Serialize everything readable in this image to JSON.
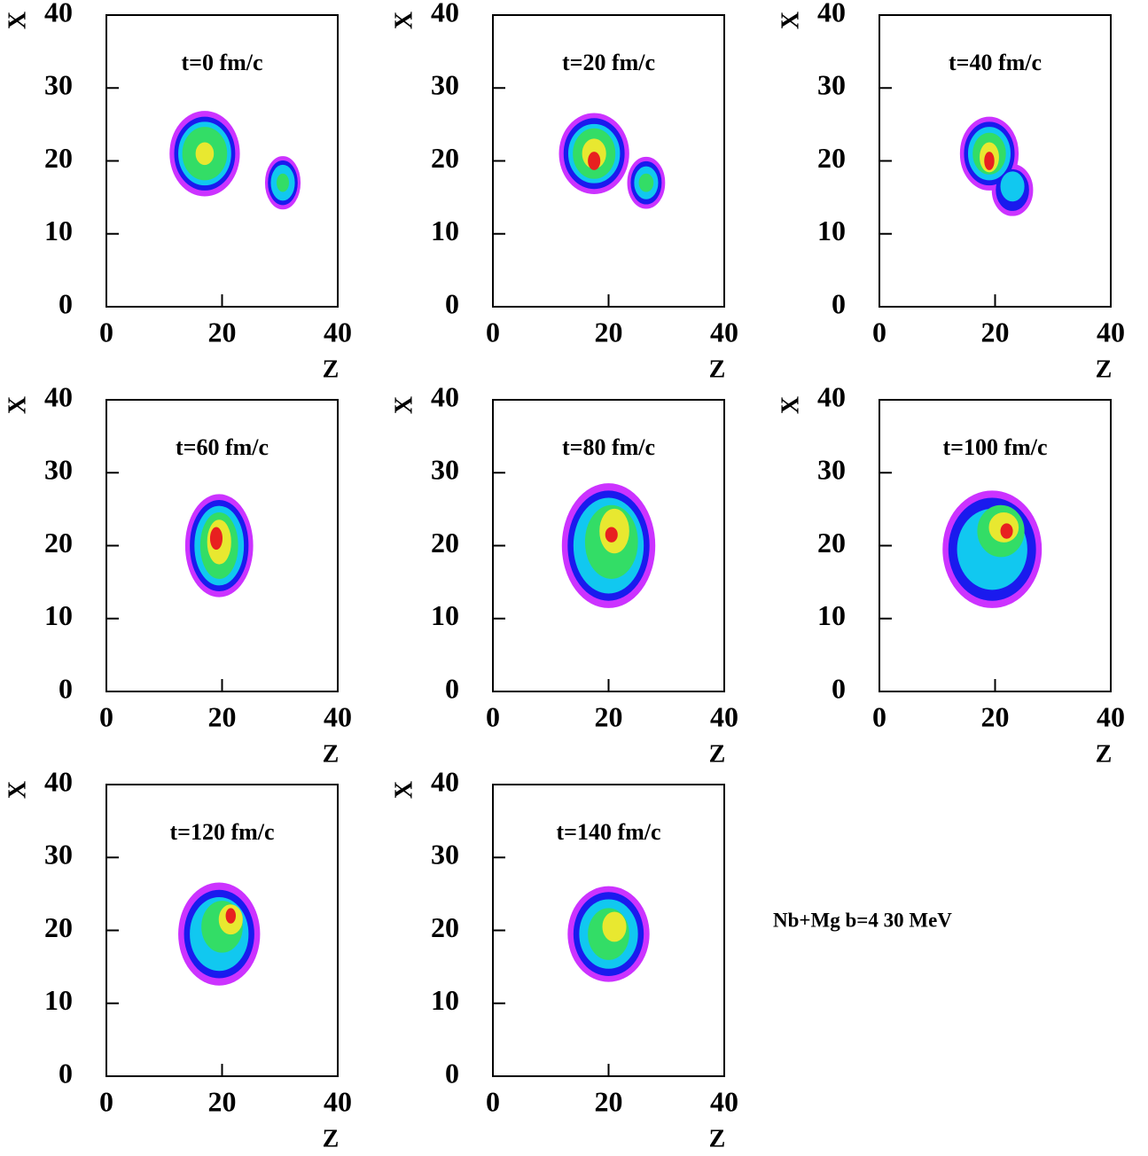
{
  "chart_data": [
    {
      "type": "contour",
      "title": "t=0 fm/c",
      "xlabel": "Z",
      "ylabel": "X",
      "xlim": [
        0,
        40
      ],
      "ylim": [
        0,
        40
      ],
      "xticks": [
        0,
        20,
        40
      ],
      "yticks": [
        0,
        10,
        20,
        30,
        40
      ],
      "contours": [
        {
          "color": "#cc33ff",
          "z": 17,
          "x": 21,
          "rz": 6,
          "rx": 5.8
        },
        {
          "color": "#1a1aee",
          "z": 17,
          "x": 21,
          "rz": 5.2,
          "rx": 5
        },
        {
          "color": "#11c8f0",
          "z": 17,
          "x": 21,
          "rz": 4.5,
          "rx": 4.3
        },
        {
          "color": "#33dd66",
          "z": 17,
          "x": 21,
          "rz": 3.8,
          "rx": 3.6
        },
        {
          "color": "#e8e830",
          "z": 17,
          "x": 21,
          "rz": 1.5,
          "rx": 1.5
        },
        {
          "color": "#cc33ff",
          "z": 30.5,
          "x": 17,
          "rz": 3,
          "rx": 3.6
        },
        {
          "color": "#1a1aee",
          "z": 30.5,
          "x": 17,
          "rz": 2.5,
          "rx": 3
        },
        {
          "color": "#11c8f0",
          "z": 30.5,
          "x": 17,
          "rz": 2,
          "rx": 2.4
        },
        {
          "color": "#33dd66",
          "z": 30.5,
          "x": 17,
          "rz": 1,
          "rx": 1.2
        }
      ]
    },
    {
      "type": "contour",
      "title": "t=20 fm/c",
      "xlabel": "Z",
      "ylabel": "X",
      "xlim": [
        0,
        40
      ],
      "ylim": [
        0,
        40
      ],
      "xticks": [
        0,
        20,
        40
      ],
      "yticks": [
        0,
        10,
        20,
        30,
        40
      ],
      "contours": [
        {
          "color": "#cc33ff",
          "z": 17.5,
          "x": 21,
          "rz": 6,
          "rx": 5.5
        },
        {
          "color": "#1a1aee",
          "z": 17.5,
          "x": 21,
          "rz": 5.2,
          "rx": 4.8
        },
        {
          "color": "#11c8f0",
          "z": 17.5,
          "x": 21,
          "rz": 4.4,
          "rx": 4
        },
        {
          "color": "#33dd66",
          "z": 17.5,
          "x": 21,
          "rz": 3.6,
          "rx": 3.4
        },
        {
          "color": "#e8e830",
          "z": 17.5,
          "x": 21,
          "rz": 2,
          "rx": 2
        },
        {
          "color": "#e82020",
          "z": 17.5,
          "x": 20,
          "rz": 1,
          "rx": 1.2
        },
        {
          "color": "#cc33ff",
          "z": 26.5,
          "x": 17,
          "rz": 3.2,
          "rx": 3.5
        },
        {
          "color": "#1a1aee",
          "z": 26.5,
          "x": 17,
          "rz": 2.6,
          "rx": 2.9
        },
        {
          "color": "#11c8f0",
          "z": 26.5,
          "x": 17,
          "rz": 2,
          "rx": 2.2
        },
        {
          "color": "#33dd66",
          "z": 26.5,
          "x": 17,
          "rz": 1.2,
          "rx": 1.2
        }
      ]
    },
    {
      "type": "contour",
      "title": "t=40 fm/c",
      "xlabel": "Z",
      "ylabel": "X",
      "xlim": [
        0,
        40
      ],
      "ylim": [
        0,
        40
      ],
      "xticks": [
        0,
        20,
        40
      ],
      "yticks": [
        0,
        10,
        20,
        30,
        40
      ],
      "contours": [
        {
          "color": "#cc33ff",
          "z": 19,
          "x": 21,
          "rz": 5,
          "rx": 5
        },
        {
          "color": "#cc33ff",
          "z": 23,
          "x": 16,
          "rz": 3.5,
          "rx": 3.5
        },
        {
          "color": "#1a1aee",
          "z": 19,
          "x": 21,
          "rz": 4.3,
          "rx": 4.3
        },
        {
          "color": "#1a1aee",
          "z": 23,
          "x": 16,
          "rz": 2.8,
          "rx": 2.8
        },
        {
          "color": "#11c8f0",
          "z": 19,
          "x": 21,
          "rz": 3.6,
          "rx": 3.6
        },
        {
          "color": "#11c8f0",
          "z": 23,
          "x": 16.5,
          "rz": 2,
          "rx": 2
        },
        {
          "color": "#33dd66",
          "z": 19,
          "x": 21,
          "rz": 2.8,
          "rx": 2.8
        },
        {
          "color": "#e8e830",
          "z": 19,
          "x": 20.5,
          "rz": 1.6,
          "rx": 2
        },
        {
          "color": "#e82020",
          "z": 19,
          "x": 20,
          "rz": 0.8,
          "rx": 1.2
        }
      ]
    },
    {
      "type": "contour",
      "title": "t=60 fm/c",
      "xlabel": "Z",
      "ylabel": "X",
      "xlim": [
        0,
        40
      ],
      "ylim": [
        0,
        40
      ],
      "xticks": [
        0,
        20,
        40
      ],
      "yticks": [
        0,
        10,
        20,
        30,
        40
      ],
      "contours": [
        {
          "color": "#cc33ff",
          "z": 19.5,
          "x": 20,
          "rz": 5.8,
          "rx": 7
        },
        {
          "color": "#1a1aee",
          "z": 19.5,
          "x": 20,
          "rz": 5,
          "rx": 6.2
        },
        {
          "color": "#11c8f0",
          "z": 19.5,
          "x": 20,
          "rz": 4.2,
          "rx": 5.4
        },
        {
          "color": "#33dd66",
          "z": 19.5,
          "x": 20,
          "rz": 3.2,
          "rx": 4.5
        },
        {
          "color": "#e8e830",
          "z": 19.5,
          "x": 20.5,
          "rz": 2,
          "rx": 3
        },
        {
          "color": "#e82020",
          "z": 19,
          "x": 21,
          "rz": 1,
          "rx": 1.5
        }
      ]
    },
    {
      "type": "contour",
      "title": "t=80 fm/c",
      "xlabel": "Z",
      "ylabel": "X",
      "xlim": [
        0,
        40
      ],
      "ylim": [
        0,
        40
      ],
      "xticks": [
        0,
        20,
        40
      ],
      "yticks": [
        0,
        10,
        20,
        30,
        40
      ],
      "contours": [
        {
          "color": "#cc33ff",
          "z": 20,
          "x": 20,
          "rz": 8,
          "rx": 8.5
        },
        {
          "color": "#1a1aee",
          "z": 20,
          "x": 20,
          "rz": 7,
          "rx": 7.5
        },
        {
          "color": "#11c8f0",
          "z": 20,
          "x": 20,
          "rz": 6,
          "rx": 6.5
        },
        {
          "color": "#33dd66",
          "z": 20.5,
          "x": 20.5,
          "rz": 4.5,
          "rx": 5
        },
        {
          "color": "#e8e830",
          "z": 21,
          "x": 22,
          "rz": 2.5,
          "rx": 3
        },
        {
          "color": "#e82020",
          "z": 20.5,
          "x": 21.5,
          "rz": 1,
          "rx": 1
        }
      ]
    },
    {
      "type": "contour",
      "title": "t=100 fm/c",
      "xlabel": "Z",
      "ylabel": "X",
      "xlim": [
        0,
        40
      ],
      "ylim": [
        0,
        40
      ],
      "xticks": [
        0,
        20,
        40
      ],
      "yticks": [
        0,
        10,
        20,
        30,
        40
      ],
      "contours": [
        {
          "color": "#cc33ff",
          "z": 19.5,
          "x": 19.5,
          "rz": 8.5,
          "rx": 8
        },
        {
          "color": "#1a1aee",
          "z": 19.5,
          "x": 19.5,
          "rz": 7.5,
          "rx": 7
        },
        {
          "color": "#11c8f0",
          "z": 19.5,
          "x": 19.5,
          "rz": 6,
          "rx": 5.5
        },
        {
          "color": "#33dd66",
          "z": 21,
          "x": 22,
          "rz": 4,
          "rx": 3.5
        },
        {
          "color": "#e8e830",
          "z": 21.5,
          "x": 22.5,
          "rz": 2.5,
          "rx": 2
        },
        {
          "color": "#e82020",
          "z": 22,
          "x": 22,
          "rz": 1,
          "rx": 1
        }
      ]
    },
    {
      "type": "contour",
      "title": "t=120 fm/c",
      "xlabel": "Z",
      "ylabel": "X",
      "xlim": [
        0,
        40
      ],
      "ylim": [
        0,
        40
      ],
      "xticks": [
        0,
        20,
        40
      ],
      "yticks": [
        0,
        10,
        20,
        30,
        40
      ],
      "contours": [
        {
          "color": "#cc33ff",
          "z": 19.5,
          "x": 19.5,
          "rz": 7,
          "rx": 7
        },
        {
          "color": "#1a1aee",
          "z": 19.5,
          "x": 19.5,
          "rz": 6,
          "rx": 6
        },
        {
          "color": "#11c8f0",
          "z": 19.5,
          "x": 19.5,
          "rz": 5,
          "rx": 5
        },
        {
          "color": "#33dd66",
          "z": 20,
          "x": 20.5,
          "rz": 3.5,
          "rx": 3.5
        },
        {
          "color": "#e8e830",
          "z": 21.5,
          "x": 21.5,
          "rz": 2,
          "rx": 2
        },
        {
          "color": "#e82020",
          "z": 21.5,
          "x": 22,
          "rz": 0.8,
          "rx": 1
        }
      ]
    },
    {
      "type": "contour",
      "title": "t=140 fm/c",
      "xlabel": "Z",
      "ylabel": "X",
      "xlim": [
        0,
        40
      ],
      "ylim": [
        0,
        40
      ],
      "xticks": [
        0,
        20,
        40
      ],
      "yticks": [
        0,
        10,
        20,
        30,
        40
      ],
      "contours": [
        {
          "color": "#cc33ff",
          "z": 20,
          "x": 19.5,
          "rz": 7,
          "rx": 6.5
        },
        {
          "color": "#1a1aee",
          "z": 20,
          "x": 19.5,
          "rz": 6,
          "rx": 5.7
        },
        {
          "color": "#11c8f0",
          "z": 20,
          "x": 19.5,
          "rz": 5,
          "rx": 4.7
        },
        {
          "color": "#33dd66",
          "z": 20,
          "x": 19.5,
          "rz": 3.5,
          "rx": 3.5
        },
        {
          "color": "#e8e830",
          "z": 21,
          "x": 20.5,
          "rz": 2,
          "rx": 2
        }
      ]
    }
  ],
  "annotation": "Nb+Mg b=4 30 MeV"
}
